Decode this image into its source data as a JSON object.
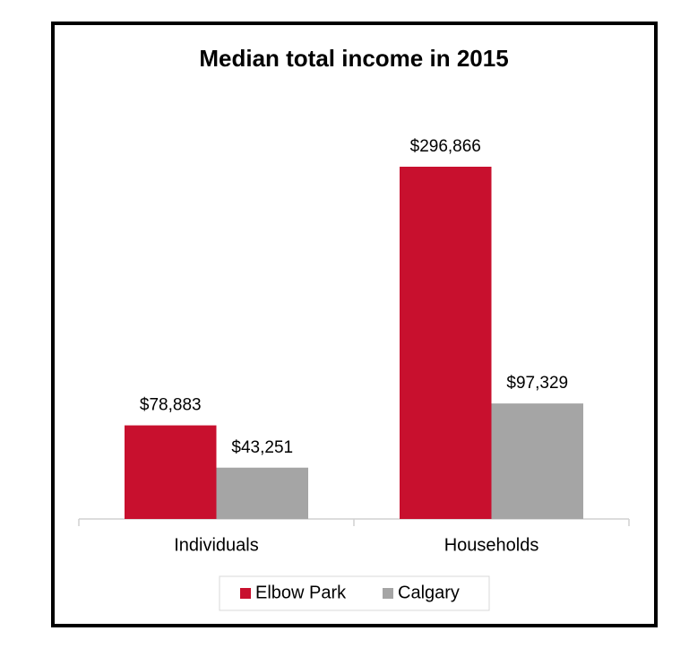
{
  "chart_data": {
    "type": "bar",
    "title": "Median total income in 2015",
    "categories": [
      "Individuals",
      "Households"
    ],
    "series": [
      {
        "name": "Elbow Park",
        "color": "#c8102e",
        "values": [
          78883,
          296866
        ],
        "value_labels": [
          "$78,883",
          "$296,866"
        ]
      },
      {
        "name": "Calgary",
        "color": "#a5a5a5",
        "values": [
          43251,
          97329
        ],
        "value_labels": [
          "$43,251",
          "$97,329"
        ]
      }
    ],
    "legend": "bottom"
  }
}
